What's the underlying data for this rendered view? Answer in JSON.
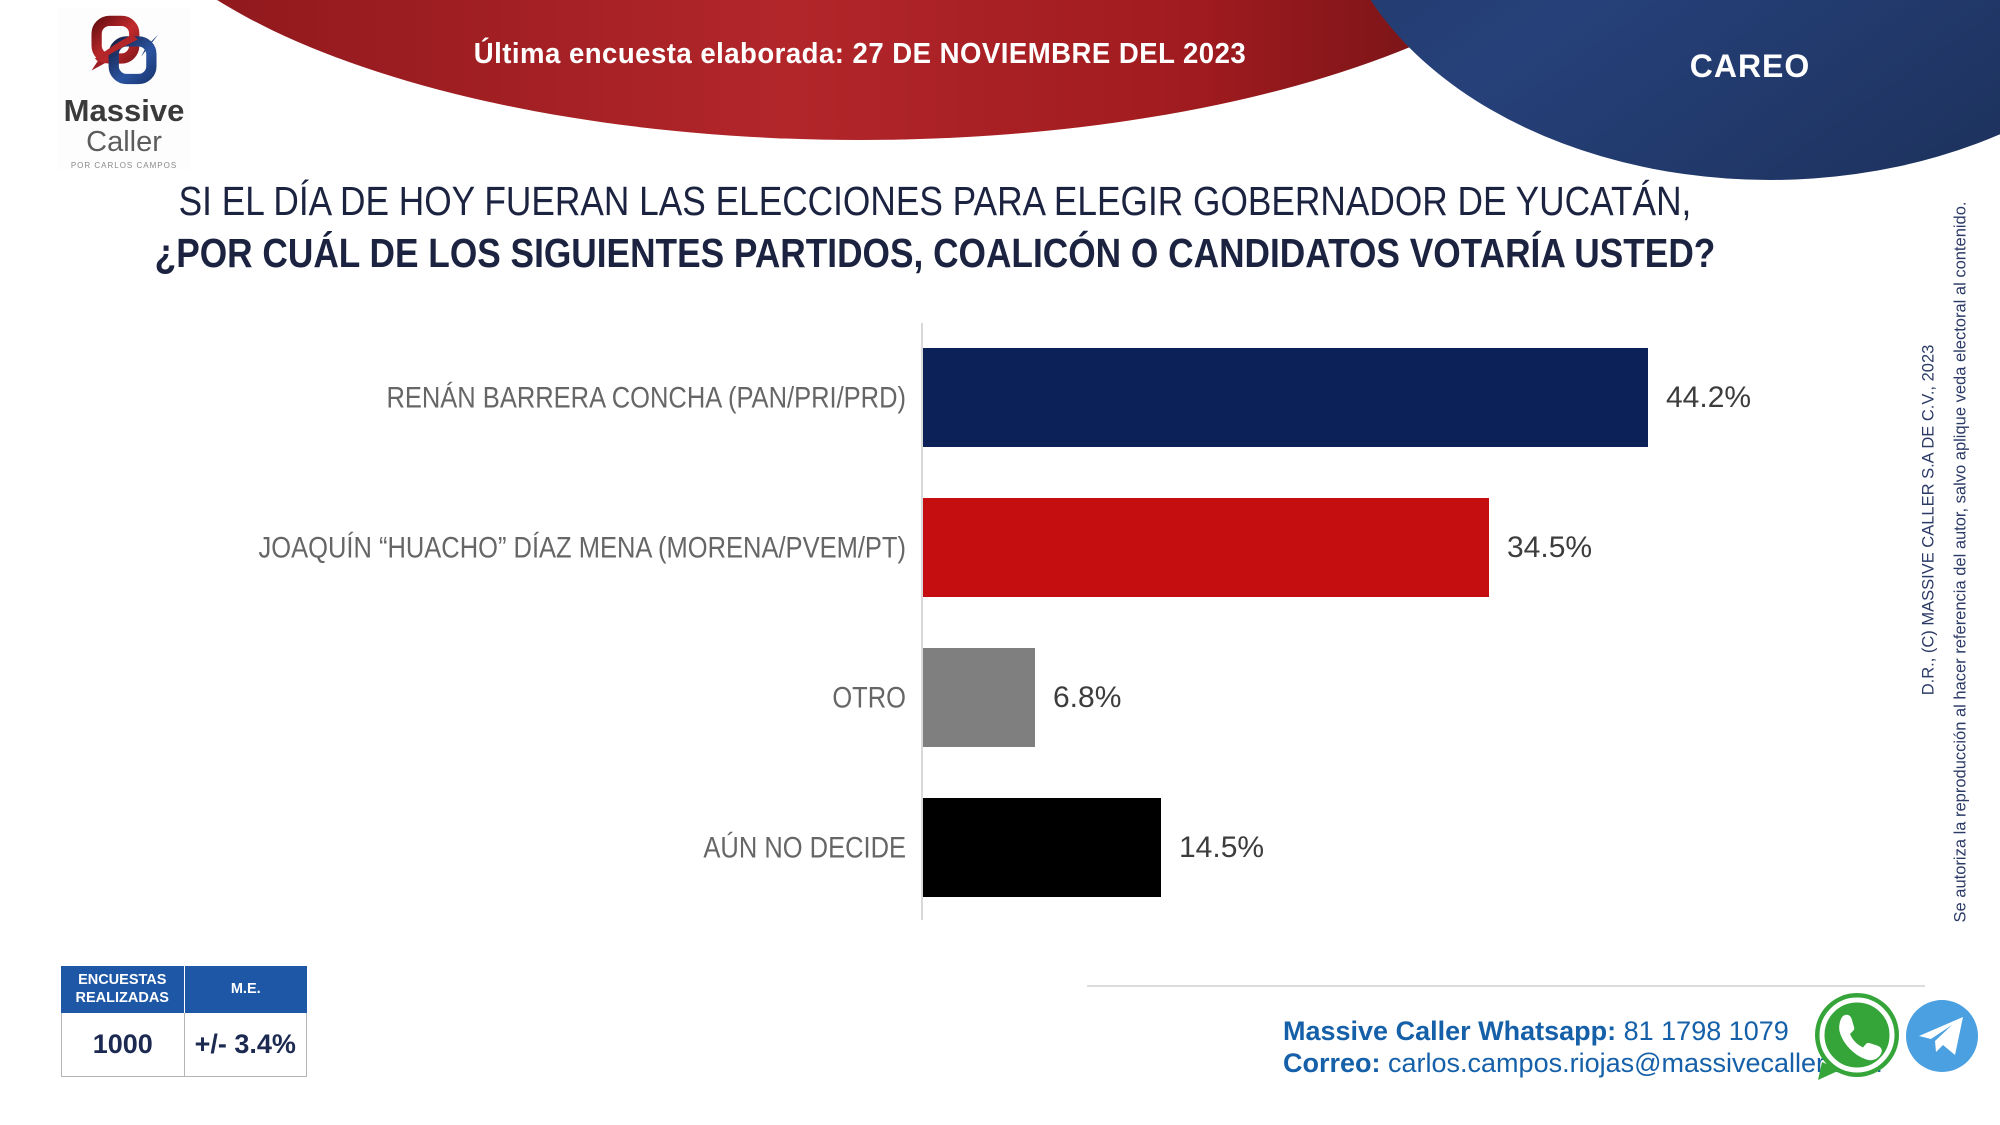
{
  "header": {
    "banner_text": "Última encuesta elaborada: 27 DE NOVIEMBRE DEL 2023",
    "badge_text": "CAREO",
    "banner_color": "#a41e22",
    "badge_color": "#22386b"
  },
  "logo": {
    "name_line1": "Massive",
    "name_line2": "Caller",
    "tagline": "POR CARLOS CAMPOS"
  },
  "title": {
    "line1": "SI EL DÍA DE HOY FUERAN LAS ELECCIONES PARA ELEGIR GOBERNADOR DE YUCATÁN,",
    "line2": "¿POR CUÁL DE LOS SIGUIENTES PARTIDOS, COALICÓN  O CANDIDATOS VOTARÍA USTED?"
  },
  "chart_data": {
    "type": "bar",
    "orientation": "horizontal",
    "categories": [
      "RENÁN BARRERA CONCHA  (PAN/PRI/PRD)",
      "JOAQUÍN “HUACHO” DÍAZ MENA  (MORENA/PVEM/PT)",
      "OTRO",
      "AÚN NO DECIDE"
    ],
    "values": [
      44.2,
      34.5,
      6.8,
      14.5
    ],
    "value_labels": [
      "44.2%",
      "34.5%",
      "6.8%",
      "14.5%"
    ],
    "bar_colors": [
      "#0c2158",
      "#c50e0f",
      "#7f7f7f",
      "#000000"
    ],
    "xlim": [
      0,
      50
    ],
    "grid": false,
    "legend": false,
    "title": "",
    "xlabel": "",
    "ylabel": ""
  },
  "stats_table": {
    "headers": [
      "ENCUESTAS REALIZADAS",
      "M.E."
    ],
    "values": [
      "1000",
      "+/- 3.4%"
    ]
  },
  "contact": {
    "whatsapp_label": "Massive Caller Whatsapp:",
    "whatsapp_number": " 81 1798 1079",
    "email_label": "Correo:",
    "email_address": " carlos.campos.riojas@massivecaller.com",
    "text_color": "#1560a8"
  },
  "social": {
    "whatsapp_color": "#35a53a",
    "telegram_color": "#4aa0e0"
  },
  "legal": {
    "copyright": "D.R., (C) MASSIVE CALLER S.A DE C.V., 2023",
    "authorization": "Se autoriza la reproducción al hacer referencia del autor, salvo aplique veda electoral al contenido."
  }
}
